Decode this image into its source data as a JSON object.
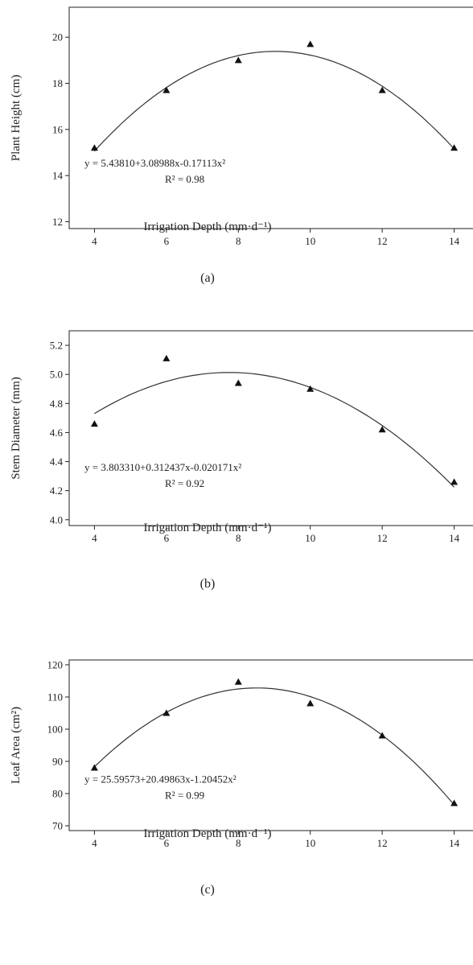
{
  "colors": {
    "axis": "#222222",
    "curve": "#333333",
    "marker": "#111111"
  },
  "chart_data": [
    {
      "type": "scatter",
      "panel_label": "(a)",
      "xlabel": "Irrigation Depth (mm·d⁻¹)",
      "ylabel": "Plant Height (cm)",
      "xlim": [
        3.7,
        14.3
      ],
      "ylim": [
        11.7,
        21.3
      ],
      "xticks": [
        4,
        6,
        8,
        10,
        12,
        14
      ],
      "yticks": [
        12,
        14,
        16,
        18,
        20
      ],
      "ytick_decimals": 0,
      "points": [
        {
          "x": 4,
          "y": 15.2
        },
        {
          "x": 6,
          "y": 17.7
        },
        {
          "x": 8,
          "y": 19.0
        },
        {
          "x": 10,
          "y": 19.7
        },
        {
          "x": 12,
          "y": 17.7
        },
        {
          "x": 14,
          "y": 15.2
        }
      ],
      "fit": {
        "type": "quadratic",
        "coefficients": [
          5.4381,
          3.08988,
          -0.17113
        ],
        "x_range": [
          4,
          14
        ]
      },
      "equation": "y = 5.43810+3.08988x-0.17113x²",
      "r_squared": "R² = 0.98"
    },
    {
      "type": "scatter",
      "panel_label": "(b)",
      "xlabel": "Irrigation Depth (mm·d⁻¹)",
      "ylabel": "Stem Diameter (mm)",
      "xlim": [
        3.7,
        14.3
      ],
      "ylim": [
        3.96,
        5.3
      ],
      "xticks": [
        4,
        6,
        8,
        10,
        12,
        14
      ],
      "yticks": [
        4.0,
        4.2,
        4.4,
        4.6,
        4.8,
        5.0,
        5.2
      ],
      "ytick_decimals": 1,
      "points": [
        {
          "x": 4,
          "y": 4.66
        },
        {
          "x": 6,
          "y": 5.11
        },
        {
          "x": 8,
          "y": 4.94
        },
        {
          "x": 10,
          "y": 4.9
        },
        {
          "x": 12,
          "y": 4.62
        },
        {
          "x": 14,
          "y": 4.26
        }
      ],
      "fit": {
        "type": "quadratic",
        "coefficients": [
          3.80331,
          0.312437,
          -0.020171
        ],
        "x_range": [
          4,
          14
        ]
      },
      "equation": "y = 3.803310+0.312437x-0.020171x²",
      "r_squared": "R² = 0.92"
    },
    {
      "type": "scatter",
      "panel_label": "(c)",
      "xlabel": "Irrigation Depth (mm·d⁻¹)",
      "ylabel": "Leaf Area (cm²)",
      "xlim": [
        3.7,
        14.3
      ],
      "ylim": [
        68.5,
        121.5
      ],
      "xticks": [
        4,
        6,
        8,
        10,
        12,
        14
      ],
      "yticks": [
        70,
        80,
        90,
        100,
        110,
        120
      ],
      "ytick_decimals": 0,
      "points": [
        {
          "x": 4,
          "y": 88
        },
        {
          "x": 6,
          "y": 105
        },
        {
          "x": 8,
          "y": 114.7
        },
        {
          "x": 10,
          "y": 108
        },
        {
          "x": 12,
          "y": 98
        },
        {
          "x": 14,
          "y": 77
        }
      ],
      "fit": {
        "type": "quadratic",
        "coefficients": [
          25.59573,
          20.49863,
          -1.20452
        ],
        "x_range": [
          4,
          14
        ]
      },
      "equation": "y = 25.59573+20.49863x-1.20452x²",
      "r_squared": "R² = 0.99"
    }
  ]
}
